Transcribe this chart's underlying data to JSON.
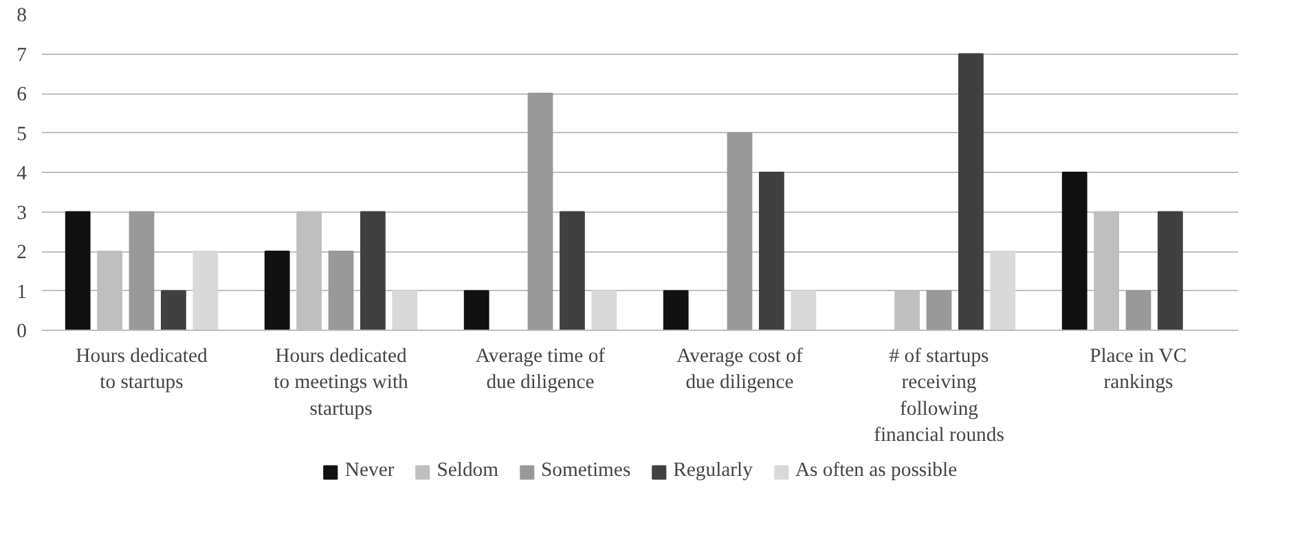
{
  "chart_data": {
    "type": "bar",
    "categories": [
      "Hours dedicated to startups",
      "Hours dedicated to meetings with startups",
      "Average time of due diligence",
      "Average cost of due diligence",
      "# of startups receiving following financial rounds",
      "Place in VC rankings"
    ],
    "series": [
      {
        "name": "Never",
        "color": "#111111",
        "values": [
          3,
          2,
          1,
          1,
          0,
          4
        ]
      },
      {
        "name": "Seldom",
        "color": "#bfbfbf",
        "values": [
          2,
          3,
          0,
          0,
          1,
          3
        ]
      },
      {
        "name": "Sometimes",
        "color": "#999999",
        "values": [
          3,
          2,
          6,
          5,
          1,
          1
        ]
      },
      {
        "name": "Regularly",
        "color": "#404040",
        "values": [
          1,
          3,
          3,
          4,
          7,
          3
        ]
      },
      {
        "name": "As often as possible",
        "color": "#d9d9d9",
        "values": [
          2,
          1,
          1,
          1,
          2,
          0
        ]
      }
    ],
    "ylim": [
      0,
      8
    ],
    "yticks": [
      0,
      1,
      2,
      3,
      4,
      5,
      6,
      7,
      8
    ],
    "grid": "y",
    "legend": "bottom"
  }
}
